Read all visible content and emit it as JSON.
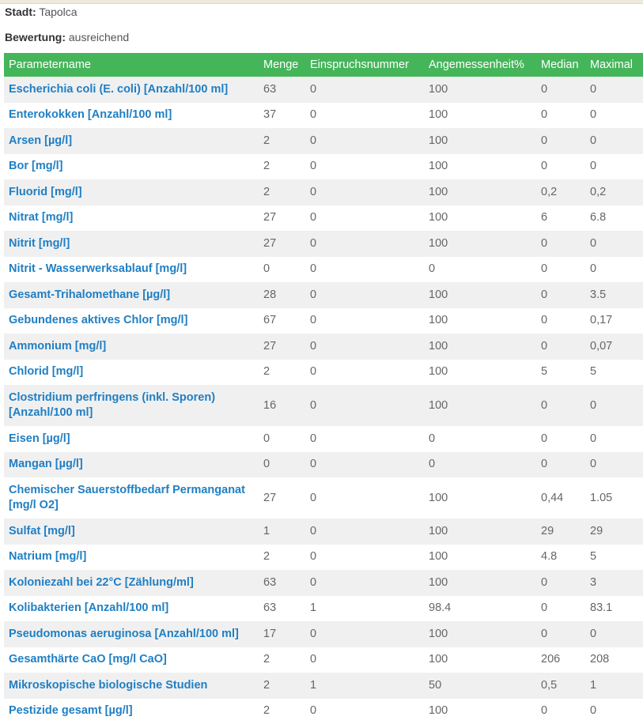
{
  "city_label": "Stadt:",
  "city": "Tapolca",
  "rating_label": "Bewertung:",
  "rating": "ausreichend",
  "colors": {
    "header": "#45b55a",
    "link": "#1f7fc4"
  },
  "columns": [
    "Parametername",
    "Menge",
    "Einspruchsnummer",
    "Angemessenheit%",
    "Median",
    "Maximal"
  ],
  "rows": [
    [
      "Escherichia coli (E. coli) [Anzahl/100 ml]",
      "63",
      "0",
      "100",
      "0",
      "0"
    ],
    [
      "Enterokokken [Anzahl/100 ml]",
      "37",
      "0",
      "100",
      "0",
      "0"
    ],
    [
      "Arsen [µg/l]",
      "2",
      "0",
      "100",
      "0",
      "0"
    ],
    [
      "Bor [mg/l]",
      "2",
      "0",
      "100",
      "0",
      "0"
    ],
    [
      "Fluorid [mg/l]",
      "2",
      "0",
      "100",
      "0,2",
      "0,2"
    ],
    [
      "Nitrat [mg/l]",
      "27",
      "0",
      "100",
      "6",
      "6.8"
    ],
    [
      "Nitrit [mg/l]",
      "27",
      "0",
      "100",
      "0",
      "0"
    ],
    [
      "Nitrit - Wasserwerksablauf [mg/l]",
      "0",
      "0",
      "0",
      "0",
      "0"
    ],
    [
      "Gesamt-Trihalomethane [µg/l]",
      "28",
      "0",
      "100",
      "0",
      "3.5"
    ],
    [
      "Gebundenes aktives Chlor [mg/l]",
      "67",
      "0",
      "100",
      "0",
      "0,17"
    ],
    [
      "Ammonium [mg/l]",
      "27",
      "0",
      "100",
      "0",
      "0,07"
    ],
    [
      "Chlorid [mg/l]",
      "2",
      "0",
      "100",
      "5",
      "5"
    ],
    [
      "Clostridium perfringens (inkl. Sporen) [Anzahl/100 ml]",
      "16",
      "0",
      "100",
      "0",
      "0"
    ],
    [
      "Eisen [µg/l]",
      "0",
      "0",
      "0",
      "0",
      "0"
    ],
    [
      "Mangan [µg/l]",
      "0",
      "0",
      "0",
      "0",
      "0"
    ],
    [
      "Chemischer Sauerstoffbedarf Permanganat [mg/l O2]",
      "27",
      "0",
      "100",
      "0,44",
      "1.05"
    ],
    [
      "Sulfat [mg/l]",
      "1",
      "0",
      "100",
      "29",
      "29"
    ],
    [
      "Natrium [mg/l]",
      "2",
      "0",
      "100",
      "4.8",
      "5"
    ],
    [
      "Koloniezahl bei 22°C [Zählung/ml]",
      "63",
      "0",
      "100",
      "0",
      "3"
    ],
    [
      "Kolibakterien [Anzahl/100 ml]",
      "63",
      "1",
      "98.4",
      "0",
      "83.1"
    ],
    [
      "Pseudomonas aeruginosa [Anzahl/100 ml]",
      "17",
      "0",
      "100",
      "0",
      "0"
    ],
    [
      "Gesamthärte CaO [mg/l CaO]",
      "2",
      "0",
      "100",
      "206",
      "208"
    ],
    [
      "Mikroskopische biologische Studien",
      "2",
      "1",
      "50",
      "0,5",
      "1"
    ],
    [
      "Pestizide gesamt [µg/l]",
      "2",
      "0",
      "100",
      "0",
      "0"
    ]
  ]
}
